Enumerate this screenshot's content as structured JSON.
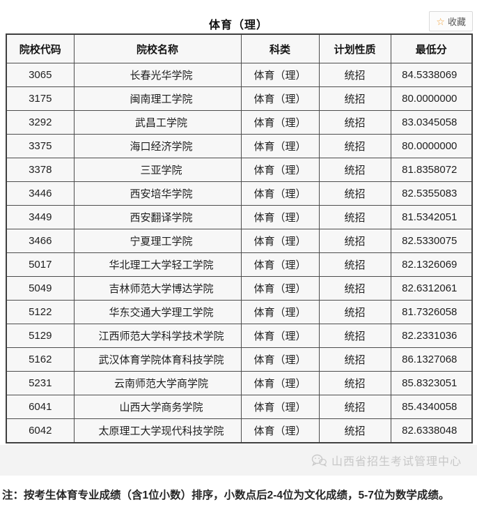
{
  "header": {
    "title": "体育（理）",
    "favorite_label": "收藏",
    "star_glyph": "☆",
    "star_color": "#f0a23c"
  },
  "table": {
    "headers": [
      "院校代码",
      "院校名称",
      "科类",
      "计划性质",
      "最低分"
    ],
    "columns": [
      "code",
      "name",
      "category",
      "plan",
      "score"
    ],
    "rows": [
      {
        "code": "3065",
        "name": "长春光华学院",
        "category": "体育（理）",
        "plan": "统招",
        "score": "84.5338069"
      },
      {
        "code": "3175",
        "name": "闽南理工学院",
        "category": "体育（理）",
        "plan": "统招",
        "score": "80.0000000"
      },
      {
        "code": "3292",
        "name": "武昌工学院",
        "category": "体育（理）",
        "plan": "统招",
        "score": "83.0345058"
      },
      {
        "code": "3375",
        "name": "海口经济学院",
        "category": "体育（理）",
        "plan": "统招",
        "score": "80.0000000"
      },
      {
        "code": "3378",
        "name": "三亚学院",
        "category": "体育（理）",
        "plan": "统招",
        "score": "81.8358072"
      },
      {
        "code": "3446",
        "name": "西安培华学院",
        "category": "体育（理）",
        "plan": "统招",
        "score": "82.5355083"
      },
      {
        "code": "3449",
        "name": "西安翻译学院",
        "category": "体育（理）",
        "plan": "统招",
        "score": "81.5342051"
      },
      {
        "code": "3466",
        "name": "宁夏理工学院",
        "category": "体育（理）",
        "plan": "统招",
        "score": "82.5330075"
      },
      {
        "code": "5017",
        "name": "华北理工大学轻工学院",
        "category": "体育（理）",
        "plan": "统招",
        "score": "82.1326069"
      },
      {
        "code": "5049",
        "name": "吉林师范大学博达学院",
        "category": "体育（理）",
        "plan": "统招",
        "score": "82.6312061"
      },
      {
        "code": "5122",
        "name": "华东交通大学理工学院",
        "category": "体育（理）",
        "plan": "统招",
        "score": "81.7326058"
      },
      {
        "code": "5129",
        "name": "江西师范大学科学技术学院",
        "category": "体育（理）",
        "plan": "统招",
        "score": "82.2331036"
      },
      {
        "code": "5162",
        "name": "武汉体育学院体育科技学院",
        "category": "体育（理）",
        "plan": "统招",
        "score": "86.1327068"
      },
      {
        "code": "5231",
        "name": "云南师范大学商学院",
        "category": "体育（理）",
        "plan": "统招",
        "score": "85.8323051"
      },
      {
        "code": "6041",
        "name": "山西大学商务学院",
        "category": "体育（理）",
        "plan": "统招",
        "score": "85.4340058"
      },
      {
        "code": "6042",
        "name": "太原理工大学现代科技学院",
        "category": "体育（理）",
        "plan": "统招",
        "score": "82.6338048"
      }
    ]
  },
  "watermark": {
    "icon": "wechat-icon",
    "text": "山西省招生考试管理中心",
    "color": "#c7c7c7"
  },
  "note": "注：按考生体育专业成绩（含1位小数）排序，小数点后2-4位为文化成绩，5-7位为数学成绩。"
}
